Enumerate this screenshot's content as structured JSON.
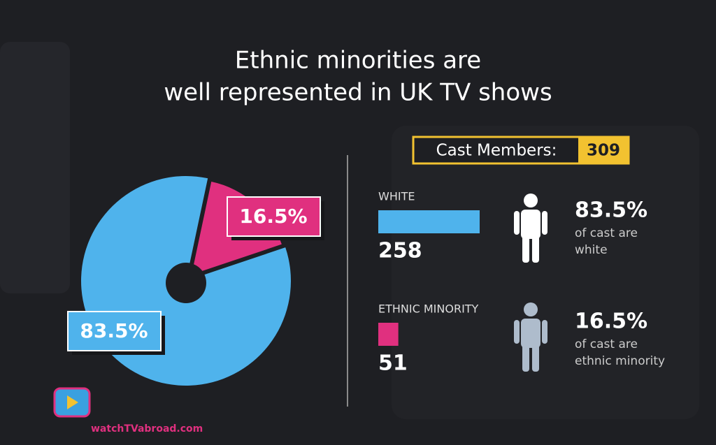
{
  "chart_data": [
    {
      "type": "pie",
      "title_lines": [
        "Ethnic minorities are",
        "well represented in UK TV shows"
      ],
      "values": [
        83.5,
        16.5
      ],
      "value_labels": [
        "83.5%",
        "16.5%"
      ],
      "colors": [
        "#4fb3ec",
        "#e0307f"
      ]
    },
    {
      "type": "bar",
      "categories": [
        "WHITE",
        "ETHNIC MINORITY"
      ],
      "values": [
        258,
        51
      ],
      "colors": [
        "#4fb3ec",
        "#e0307f"
      ]
    }
  ],
  "cast_total": {
    "label": "Cast Members:",
    "value": 309
  },
  "stats": [
    {
      "value_label": "83.5%",
      "lines": [
        "of cast are",
        "white"
      ]
    },
    {
      "value_label": "16.5%",
      "lines": [
        "of cast are",
        "ethnic minority"
      ]
    }
  ],
  "logo_text": "watchTVabroad.com"
}
